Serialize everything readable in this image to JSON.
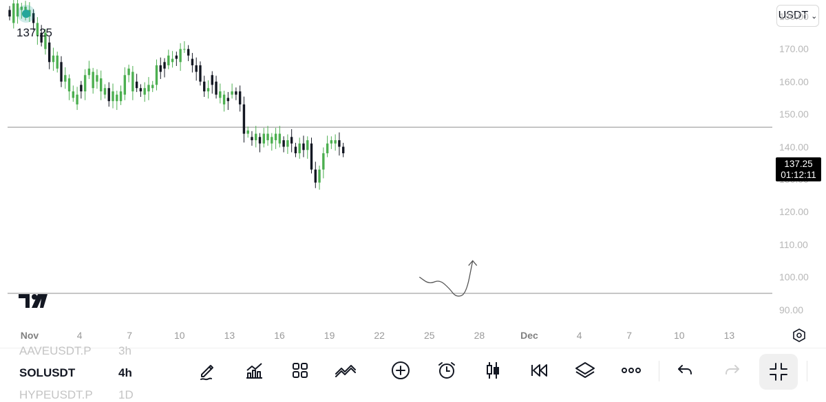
{
  "app": {
    "currency": "USDT",
    "last_price": "137.25",
    "price_badge": {
      "price": "137.25",
      "countdown": "01:12:11"
    }
  },
  "colors": {
    "up": "#4caf50",
    "down": "#131722",
    "live_dot": "#26a69a",
    "drawing_line": "#555555"
  },
  "chart_data": {
    "type": "candlestick",
    "ylim": [
      88,
      184
    ],
    "yticks": [
      "180.00",
      "170.00",
      "160.00",
      "150.00",
      "140.00",
      "130.00",
      "120.00",
      "110.00",
      "100.00",
      "90.00"
    ],
    "xticks": [
      "Nov",
      "4",
      "7",
      "10",
      "13",
      "16",
      "19",
      "22",
      "25",
      "28",
      "Dec",
      "4",
      "7",
      "10",
      "13"
    ],
    "horizontal_lines": [
      146.0,
      95.0
    ],
    "drawing": {
      "type": "path-arrow",
      "points": [
        [
          23.4,
          100
        ],
        [
          24.0,
          97.8
        ],
        [
          24.6,
          99.2
        ],
        [
          25.2,
          96.5
        ],
        [
          25.6,
          93.8
        ],
        [
          26.2,
          94.7
        ],
        [
          26.6,
          105
        ]
      ]
    },
    "series_points": [
      [
        182,
        180
      ],
      [
        178,
        184
      ],
      [
        180,
        184
      ],
      [
        182,
        183
      ],
      [
        180,
        183
      ],
      [
        180,
        182
      ],
      [
        181,
        178
      ],
      [
        174,
        178
      ],
      [
        175,
        172
      ],
      [
        170,
        175
      ],
      [
        172,
        166
      ],
      [
        166,
        168
      ],
      [
        164,
        168
      ],
      [
        166,
        160
      ],
      [
        160,
        162
      ],
      [
        157,
        161
      ],
      [
        155,
        157
      ],
      [
        153,
        156
      ],
      [
        159,
        157
      ],
      [
        157,
        162
      ],
      [
        162,
        164
      ],
      [
        158,
        163
      ],
      [
        160,
        162
      ],
      [
        157,
        161
      ],
      [
        156,
        158
      ],
      [
        158,
        154
      ],
      [
        154,
        157
      ],
      [
        154,
        156
      ],
      [
        154,
        157
      ],
      [
        156,
        162
      ],
      [
        162,
        164
      ],
      [
        157,
        163
      ],
      [
        160,
        158
      ],
      [
        158,
        157
      ],
      [
        156,
        158
      ],
      [
        157,
        159
      ],
      [
        158,
        159
      ],
      [
        159,
        165
      ],
      [
        165,
        163
      ],
      [
        166,
        164
      ],
      [
        165,
        168
      ],
      [
        166,
        167
      ],
      [
        168,
        167
      ],
      [
        166,
        170
      ],
      [
        170,
        170
      ],
      [
        170,
        168
      ],
      [
        167,
        165
      ],
      [
        165,
        163
      ],
      [
        165,
        160
      ],
      [
        160,
        157
      ],
      [
        157,
        158
      ],
      [
        162,
        159
      ],
      [
        160,
        156
      ],
      [
        155,
        157
      ],
      [
        153,
        156
      ],
      [
        155,
        154
      ],
      [
        156,
        157
      ],
      [
        157,
        156
      ],
      [
        157,
        153
      ],
      [
        153,
        144
      ],
      [
        144,
        145
      ],
      [
        143,
        142
      ],
      [
        142,
        144
      ],
      [
        143,
        141
      ],
      [
        141,
        144
      ],
      [
        142,
        144
      ],
      [
        141,
        143
      ],
      [
        142,
        144
      ],
      [
        141,
        144
      ],
      [
        142,
        140
      ],
      [
        140,
        142
      ],
      [
        143,
        141
      ],
      [
        140,
        138
      ],
      [
        138,
        141
      ],
      [
        141,
        139
      ],
      [
        139,
        142
      ],
      [
        141,
        133
      ],
      [
        133,
        129
      ],
      [
        129,
        133
      ],
      [
        133,
        138
      ],
      [
        138,
        141
      ],
      [
        141,
        142
      ],
      [
        141,
        142
      ],
      [
        142,
        140
      ],
      [
        140,
        138
      ]
    ]
  },
  "bottom_bar": {
    "symbols": {
      "prev": "AAVEUSDT.P",
      "current": "SOLUSDT",
      "next": "HYPEUSDT.P"
    },
    "timeframes": {
      "prev": "3h",
      "current": "4h",
      "next": "1D"
    },
    "tools": [
      "pencil-icon",
      "indicators-icon",
      "templates-icon",
      "compare-icon",
      "add-icon",
      "alarm-icon",
      "chart-type-icon",
      "replay-icon",
      "layers-icon",
      "more-icon",
      "undo-icon",
      "redo-icon",
      "fullscreen-exit-icon"
    ]
  }
}
